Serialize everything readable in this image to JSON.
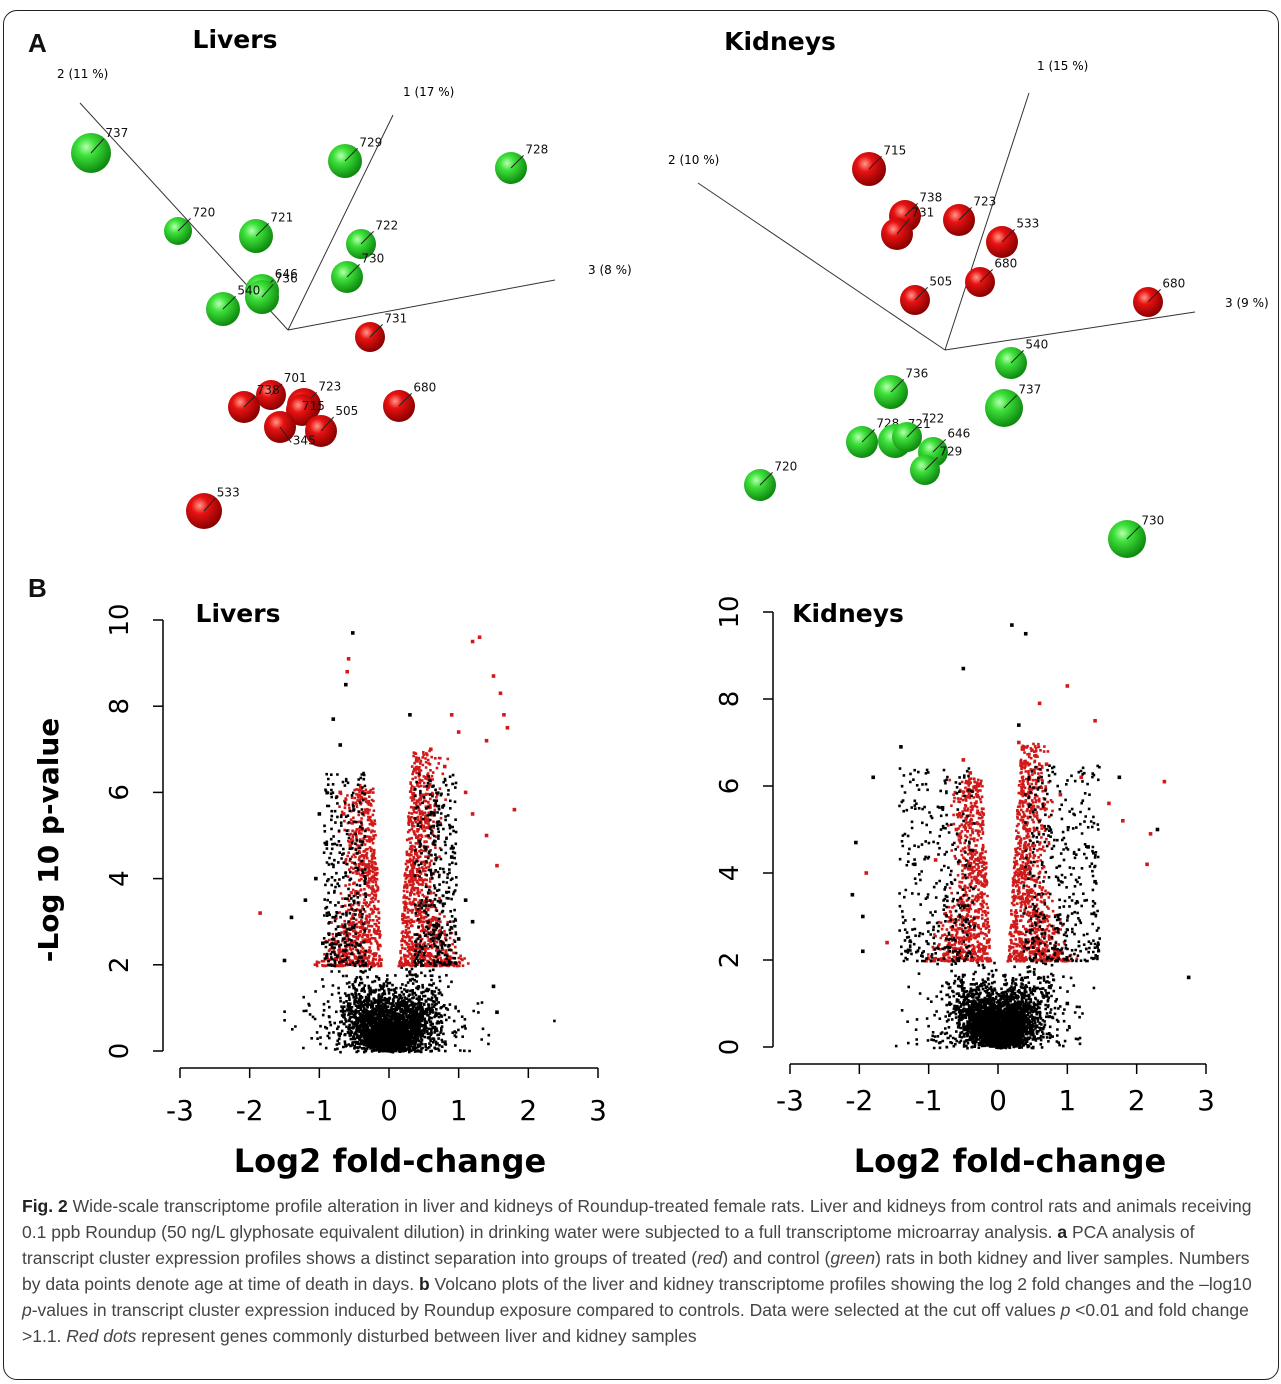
{
  "panels": {
    "a_letter": "A",
    "b_letter": "B"
  },
  "pca": [
    {
      "title": "Livers",
      "axis_labels": {
        "ax1": "1 (17 %)",
        "ax2": "2 (11 %)",
        "ax3": "3 (8 %)"
      },
      "points": [
        {
          "label": "737",
          "group": "control"
        },
        {
          "label": "729",
          "group": "control"
        },
        {
          "label": "728",
          "group": "control"
        },
        {
          "label": "720",
          "group": "control"
        },
        {
          "label": "721",
          "group": "control"
        },
        {
          "label": "722",
          "group": "control"
        },
        {
          "label": "730",
          "group": "control"
        },
        {
          "label": "646",
          "group": "control"
        },
        {
          "label": "736",
          "group": "control"
        },
        {
          "label": "540",
          "group": "control"
        },
        {
          "label": "731",
          "group": "treated"
        },
        {
          "label": "701",
          "group": "treated"
        },
        {
          "label": "738",
          "group": "treated"
        },
        {
          "label": "723",
          "group": "treated"
        },
        {
          "label": "715",
          "group": "treated"
        },
        {
          "label": "505",
          "group": "treated"
        },
        {
          "label": "680",
          "group": "treated"
        },
        {
          "label": "345",
          "group": "treated"
        },
        {
          "label": "533",
          "group": "treated"
        }
      ]
    },
    {
      "title": "Kidneys",
      "axis_labels": {
        "ax1": "1 (15 %)",
        "ax2": "2 (10 %)",
        "ax3": "3 (9 %)"
      },
      "points": [
        {
          "label": "715",
          "group": "treated"
        },
        {
          "label": "738",
          "group": "treated"
        },
        {
          "label": "731",
          "group": "treated"
        },
        {
          "label": "723",
          "group": "treated"
        },
        {
          "label": "533",
          "group": "treated"
        },
        {
          "label": "505",
          "group": "treated"
        },
        {
          "label": "680",
          "group": "treated"
        },
        {
          "label": "680",
          "group": "treated"
        },
        {
          "label": "540",
          "group": "control"
        },
        {
          "label": "736",
          "group": "control"
        },
        {
          "label": "737",
          "group": "control"
        },
        {
          "label": "728",
          "group": "control"
        },
        {
          "label": "721",
          "group": "control"
        },
        {
          "label": "722",
          "group": "control"
        },
        {
          "label": "646",
          "group": "control"
        },
        {
          "label": "729",
          "group": "control"
        },
        {
          "label": "720",
          "group": "control"
        },
        {
          "label": "730",
          "group": "control"
        }
      ]
    }
  ],
  "chart_data": [
    {
      "type": "scatter",
      "title": "Livers",
      "xlabel": "Log2 fold-change",
      "ylabel": "-Log 10 p-value",
      "xlim": [
        -3,
        3
      ],
      "ylim": [
        0,
        10
      ],
      "x_ticks": [
        "-3",
        "-2",
        "-1",
        "0",
        "1",
        "2",
        "3"
      ],
      "y_ticks": [
        "0",
        "2",
        "4",
        "6",
        "8",
        "10"
      ],
      "series": [
        {
          "color": "#000000",
          "points": [
            [
              -0.52,
              9.7
            ],
            [
              -0.62,
              8.5
            ],
            [
              -0.8,
              7.7
            ],
            [
              -0.7,
              7.1
            ],
            [
              0.3,
              7.8
            ],
            [
              -1.0,
              5.5
            ],
            [
              -1.05,
              4.0
            ],
            [
              -1.4,
              3.1
            ],
            [
              -1.5,
              2.1
            ],
            [
              1.5,
              1.5
            ],
            [
              1.55,
              0.9
            ],
            [
              -0.9,
              4.8
            ],
            [
              0.9,
              4.5
            ],
            [
              1.1,
              3.5
            ],
            [
              1.2,
              3.0
            ],
            [
              -1.2,
              3.5
            ],
            [
              -0.95,
              2.5
            ],
            [
              1.0,
              2.6
            ]
          ]
        },
        {
          "color": "#d11919",
          "points": [
            [
              1.3,
              9.6
            ],
            [
              1.2,
              9.5
            ],
            [
              1.5,
              8.7
            ],
            [
              1.6,
              8.3
            ],
            [
              1.65,
              7.8
            ],
            [
              1.7,
              7.5
            ],
            [
              1.4,
              7.2
            ],
            [
              1.8,
              5.6
            ],
            [
              1.55,
              4.3
            ],
            [
              -1.85,
              3.2
            ],
            [
              -0.6,
              8.8
            ],
            [
              -0.58,
              9.1
            ],
            [
              0.9,
              7.8
            ],
            [
              1.0,
              7.4
            ],
            [
              0.6,
              7.0
            ],
            [
              0.8,
              6.6
            ],
            [
              1.1,
              6.0
            ],
            [
              1.2,
              5.5
            ],
            [
              1.4,
              5.0
            ],
            [
              -0.7,
              6.0
            ],
            [
              -0.65,
              5.5
            ]
          ]
        }
      ]
    },
    {
      "type": "scatter",
      "title": "Kidneys",
      "xlabel": "Log2 fold-change",
      "ylabel": "",
      "xlim": [
        -3,
        3
      ],
      "ylim": [
        0,
        10
      ],
      "x_ticks": [
        "-3",
        "-2",
        "-1",
        "0",
        "1",
        "2",
        "3"
      ],
      "y_ticks": [
        "0",
        "2",
        "4",
        "6",
        "8",
        "10"
      ],
      "series": [
        {
          "color": "#000000",
          "points": [
            [
              0.2,
              9.7
            ],
            [
              0.4,
              9.5
            ],
            [
              -0.5,
              8.7
            ],
            [
              -1.4,
              6.9
            ],
            [
              -1.8,
              6.2
            ],
            [
              -2.05,
              4.7
            ],
            [
              -2.1,
              3.5
            ],
            [
              -1.95,
              3.0
            ],
            [
              -1.95,
              2.2
            ],
            [
              2.75,
              1.6
            ],
            [
              2.3,
              5.0
            ],
            [
              1.75,
              6.2
            ],
            [
              0.3,
              7.4
            ],
            [
              -0.8,
              5.5
            ],
            [
              1.0,
              1.0
            ],
            [
              -1.2,
              4.2
            ],
            [
              1.3,
              4.6
            ],
            [
              1.4,
              3.8
            ]
          ]
        },
        {
          "color": "#d11919",
          "points": [
            [
              1.0,
              8.3
            ],
            [
              0.6,
              7.9
            ],
            [
              1.4,
              7.5
            ],
            [
              2.4,
              6.1
            ],
            [
              2.2,
              4.9
            ],
            [
              2.15,
              4.2
            ],
            [
              -1.9,
              4.0
            ],
            [
              -1.6,
              2.4
            ],
            [
              -0.5,
              6.6
            ],
            [
              -0.4,
              6.3
            ],
            [
              0.3,
              7.0
            ],
            [
              0.7,
              6.5
            ],
            [
              1.2,
              6.2
            ],
            [
              1.6,
              5.6
            ],
            [
              1.8,
              5.2
            ],
            [
              0.9,
              5.8
            ],
            [
              -0.6,
              5.0
            ],
            [
              -0.9,
              4.3
            ]
          ]
        }
      ]
    }
  ],
  "caption": {
    "fig": "Fig. 2",
    "text1": " Wide-scale transcriptome profile alteration in liver and kidneys of Roundup-treated female rats. Liver and kidneys from control rats and animals receiving 0.1 ppb Roundup (50 ng/L glyphosate equivalent dilution) in drinking water were subjected to a full transcriptome microarray analysis. ",
    "a": "a",
    "text2": " PCA analysis of transcript cluster expression profiles shows a distinct separation into groups of treated (",
    "red": "red",
    "text3": ") and control (",
    "green": "green",
    "text4": ") rats in both kidney and liver samples. Numbers by data points denote age at time of death in days. ",
    "b": "b",
    "text5": " Volcano plots of the liver and kidney transcriptome profiles showing the log 2 fold changes and the –log10 ",
    "p1": "p",
    "text6": "-values in transcript cluster expression induced by Roundup exposure compared to controls. Data were selected at the cut off values ",
    "p2": "p",
    "text7": " <0.01 and fold change >1.1. ",
    "reddots": "Red dots",
    "text8": " represent genes commonly disturbed between liver and kidney samples"
  },
  "colors": {
    "treated": "#e00000",
    "control": "#22cc22",
    "black": "#000000",
    "red_dot": "#d11919"
  }
}
